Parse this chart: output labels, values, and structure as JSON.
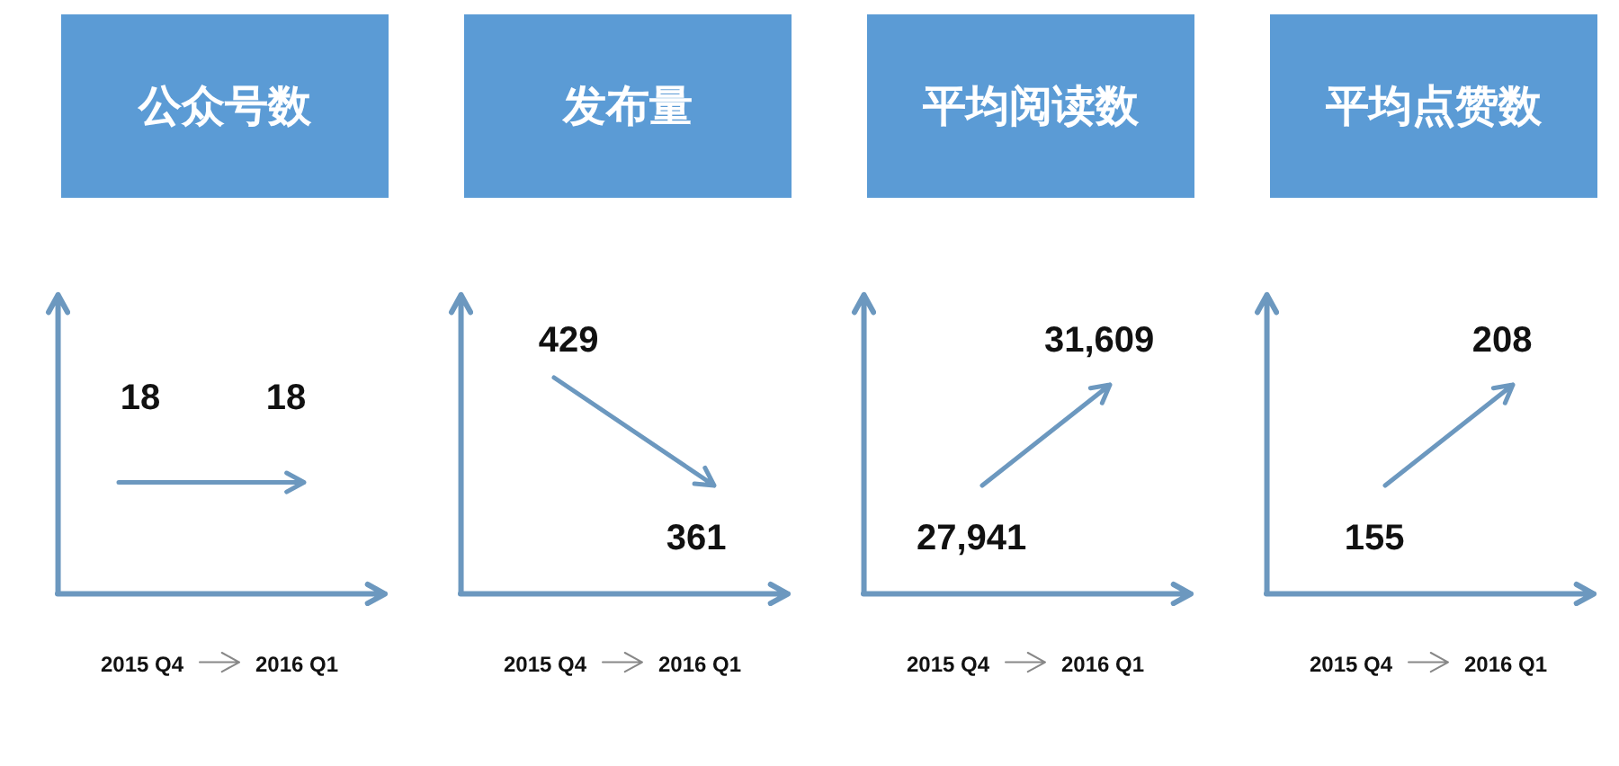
{
  "chart_data": [
    {
      "type": "other",
      "title": "公众号数",
      "categories": [
        "2015 Q4",
        "2016 Q1"
      ],
      "values": [
        18,
        18
      ],
      "value_labels": [
        "18",
        "18"
      ],
      "color": "#6c98bf"
    },
    {
      "type": "other",
      "title": "发布量",
      "categories": [
        "2015 Q4",
        "2016 Q1"
      ],
      "values": [
        429,
        361
      ],
      "value_labels": [
        "429",
        "361"
      ],
      "color": "#6c98bf"
    },
    {
      "type": "other",
      "title": "平均阅读数",
      "categories": [
        "2015 Q4",
        "2016 Q1"
      ],
      "values": [
        27941,
        31609
      ],
      "value_labels": [
        "27,941",
        "31,609"
      ],
      "color": "#6c98bf"
    },
    {
      "type": "other",
      "title": "平均点赞数",
      "categories": [
        "2015 Q4",
        "2016 Q1"
      ],
      "values": [
        155,
        208
      ],
      "value_labels": [
        "155",
        "208"
      ],
      "color": "#6c98bf"
    }
  ]
}
